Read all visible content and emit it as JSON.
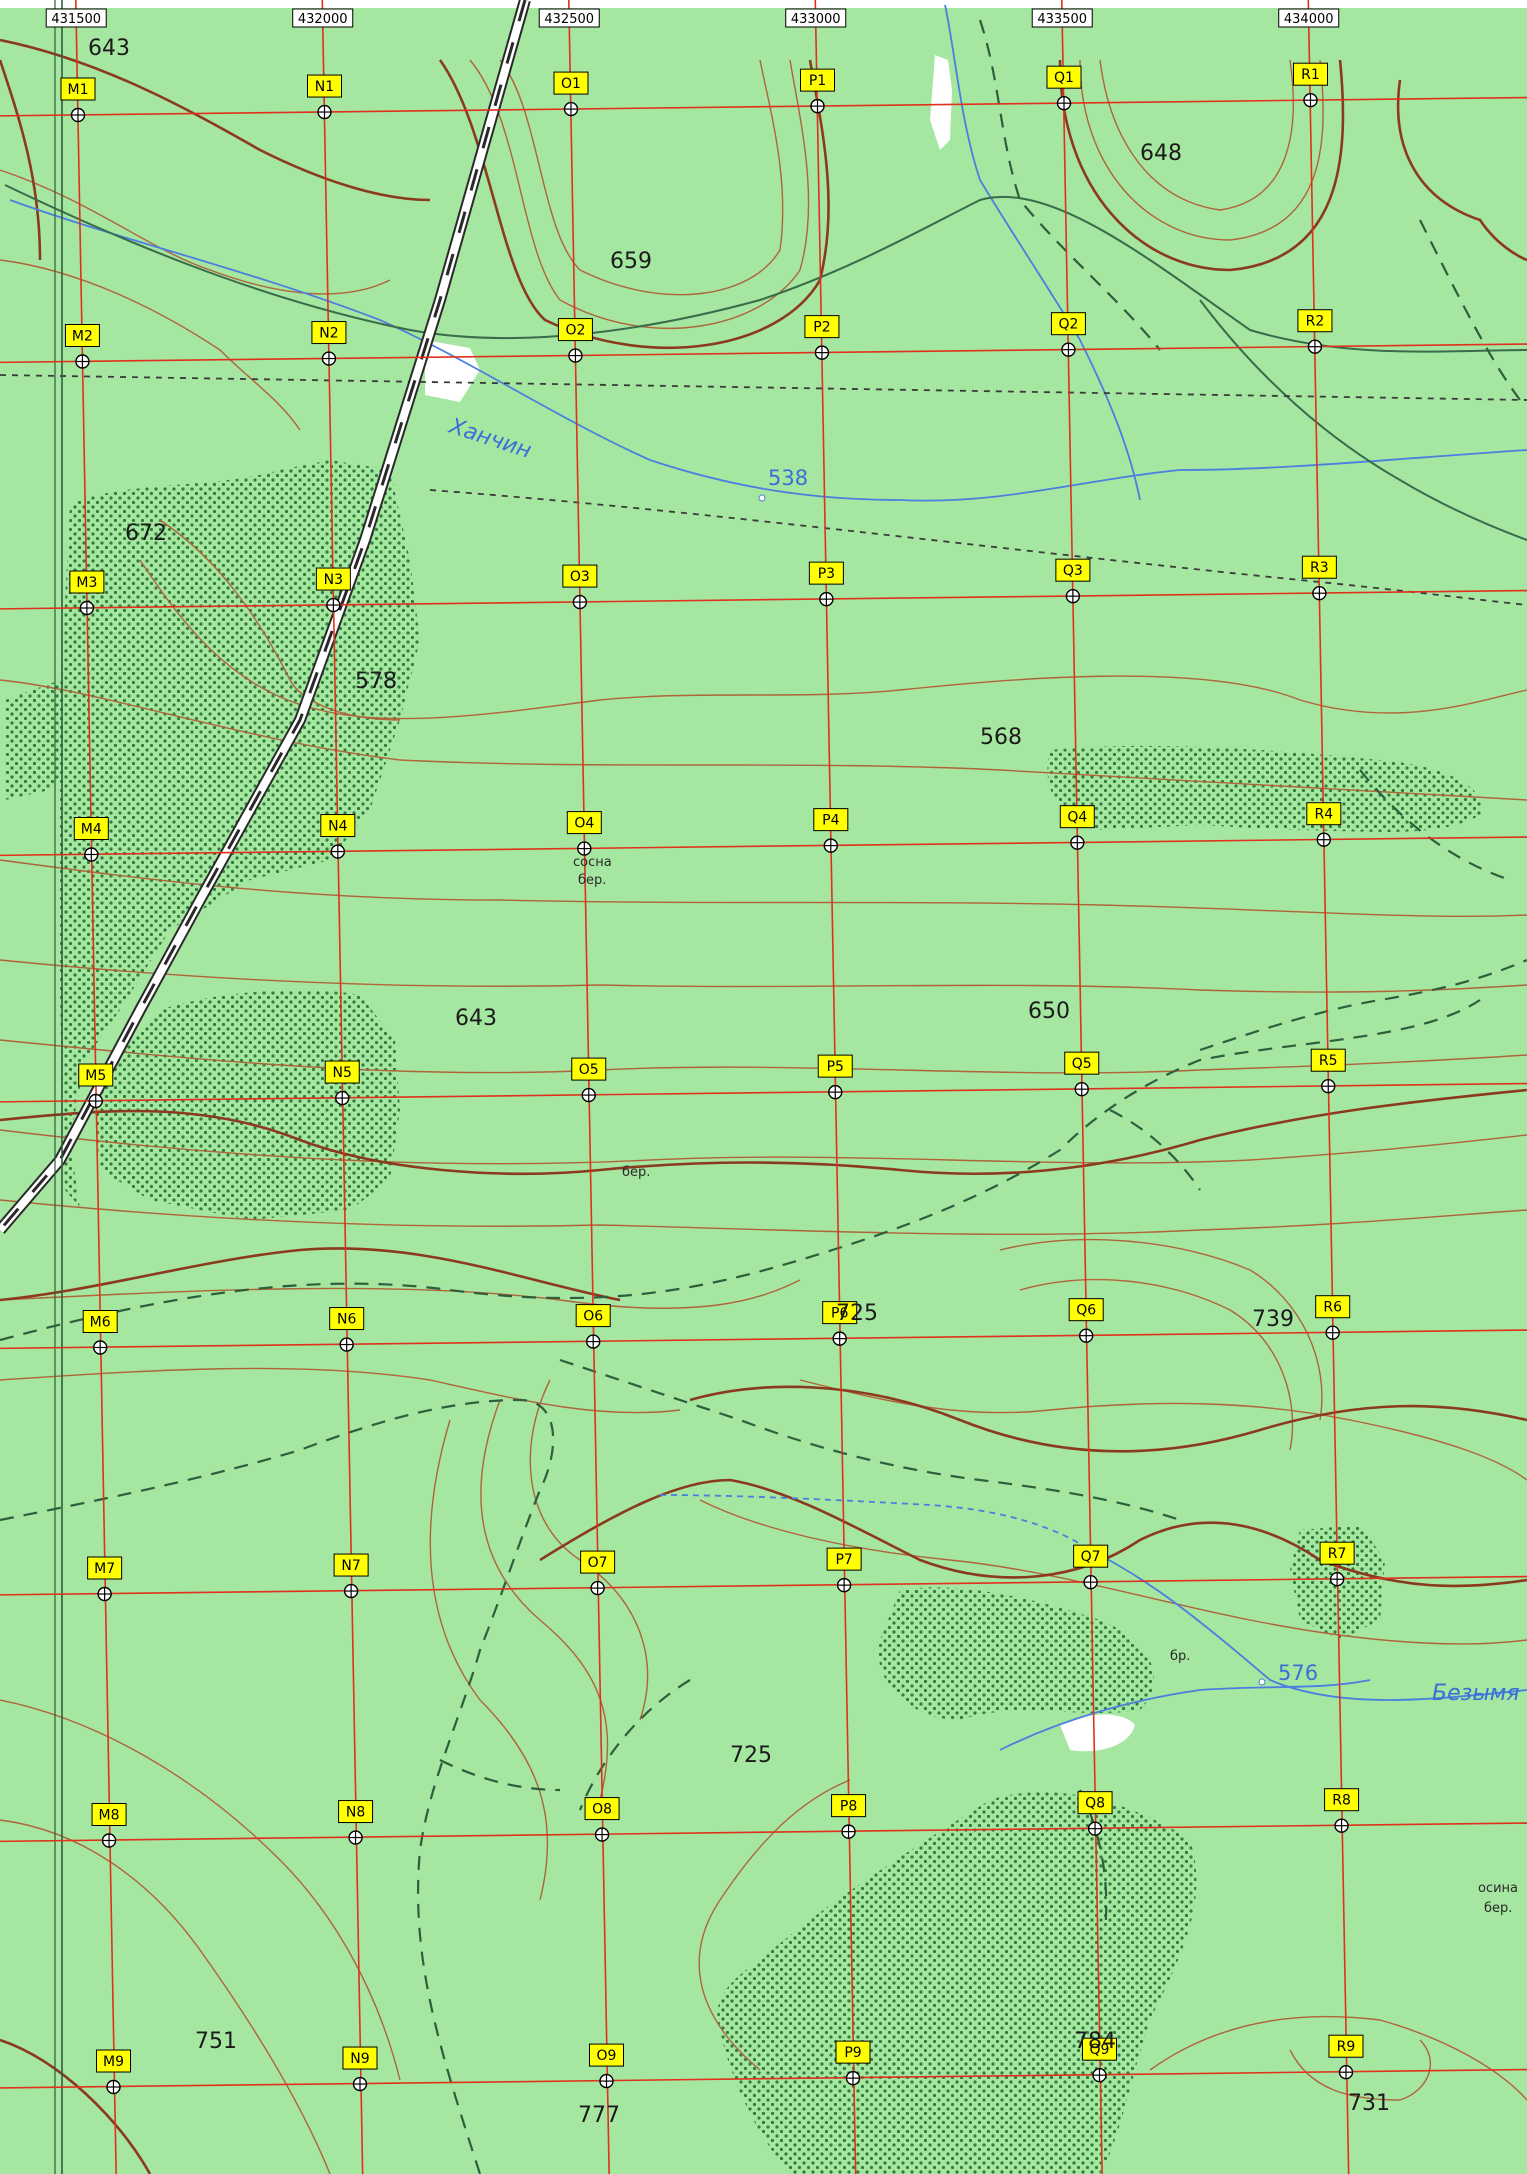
{
  "map": {
    "colors": {
      "forest": "#a5e6a0",
      "contour": "#a0522d",
      "contour_index": "#8b3a1e",
      "grid": "#e0301e",
      "water": "#4a7fe0",
      "label_bg": "#ffff00"
    },
    "easting_labels": [
      "431500",
      "432000",
      "432500",
      "433000",
      "433500",
      "434000"
    ],
    "columns": [
      "M",
      "N",
      "O",
      "P",
      "Q",
      "R"
    ],
    "rows": [
      "1",
      "2",
      "3",
      "4",
      "5",
      "6",
      "7",
      "8",
      "9"
    ],
    "elevations": [
      "643",
      "648",
      "659",
      "672",
      "578",
      "568",
      "643",
      "650",
      "725",
      "739",
      "725",
      "751",
      "784",
      "777",
      "731"
    ],
    "water_labels": {
      "river_1": "Ханчин",
      "river_1_elev": "538",
      "river_2": "Безымя",
      "river_2_elev": "576"
    },
    "vegetation_notes": [
      "сосна",
      "бер.",
      "бер.",
      "бр.",
      "осина",
      "бер."
    ]
  }
}
